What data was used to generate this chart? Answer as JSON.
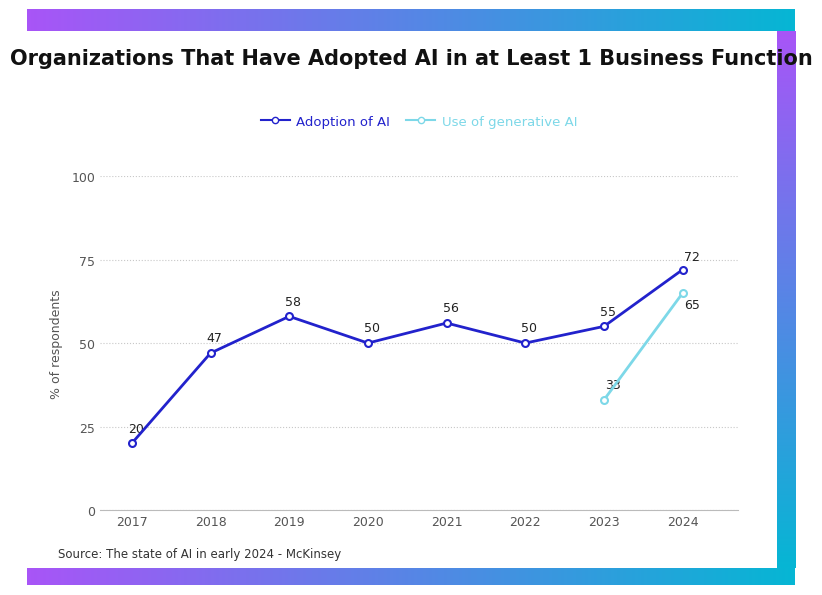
{
  "title": "Organizations That Have Adopted AI in at Least 1 Business Function",
  "source": "Source: The state of AI in early 2024 - McKinsey",
  "ylabel": "% of respondents",
  "background_color": "#ffffff",
  "ai_adoption": {
    "label": "Adoption of AI",
    "years": [
      2017,
      2018,
      2019,
      2020,
      2021,
      2022,
      2023,
      2024
    ],
    "values": [
      20,
      47,
      58,
      50,
      56,
      50,
      55,
      72
    ],
    "color": "#2222cc",
    "marker": "o",
    "marker_size": 5,
    "linewidth": 2.0
  },
  "gen_ai": {
    "label": "Use of generative AI",
    "years": [
      2023,
      2024
    ],
    "values": [
      33,
      65
    ],
    "color": "#7dd8e8",
    "marker": "o",
    "marker_size": 5,
    "linewidth": 2.0
  },
  "ylim": [
    0,
    100
  ],
  "yticks": [
    0,
    25,
    50,
    75,
    100
  ],
  "xlim": [
    2016.6,
    2024.7
  ],
  "grid_color": "#c8c8c8",
  "grid_linestyle": ":",
  "grid_alpha": 1.0,
  "title_fontsize": 15,
  "label_fontsize": 9,
  "tick_fontsize": 9,
  "annotation_fontsize": 9,
  "legend_fontsize": 9.5,
  "source_fontsize": 8.5,
  "grad_start": "#a855f7",
  "grad_end": "#06b6d4"
}
